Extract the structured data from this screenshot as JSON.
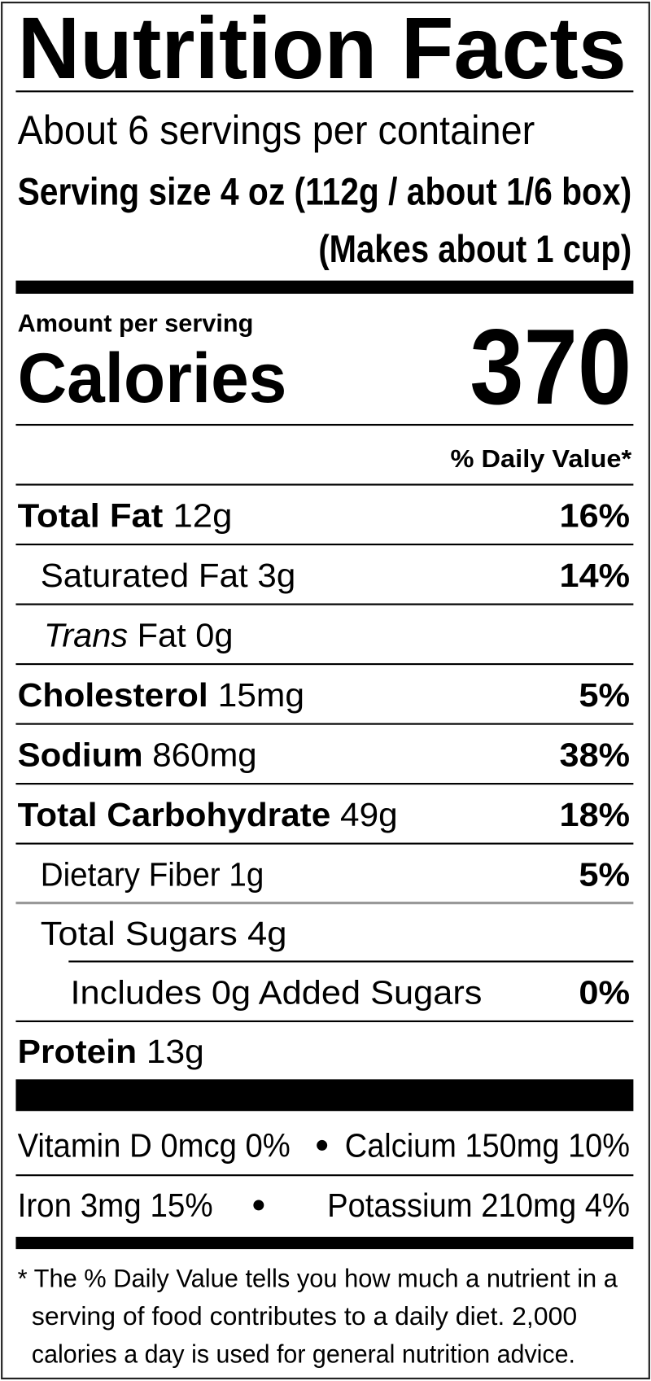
{
  "label": {
    "title": "Nutrition Facts",
    "servings_per_container": "About 6 servings per container",
    "serving_size": {
      "label": "Serving size",
      "value": "4 oz (112g / about 1/6 box)",
      "note": "(Makes about 1 cup)"
    },
    "amount_per_serving": "Amount per serving",
    "calories": {
      "label": "Calories",
      "value": "370"
    },
    "daily_value_header": "% Daily Value*",
    "nutrients": [
      {
        "name": "Total Fat",
        "amount": "12g",
        "dv": "16%"
      },
      {
        "name": "Saturated Fat",
        "amount": "3g",
        "dv": "14%"
      },
      {
        "name_italic": "Trans",
        "name": "Fat",
        "amount": "0g"
      },
      {
        "name": "Cholesterol",
        "amount": "15mg",
        "dv": "5%"
      },
      {
        "name": "Sodium",
        "amount": "860mg",
        "dv": "38%"
      },
      {
        "name": "Total Carbohydrate",
        "amount": "49g",
        "dv": "18%"
      },
      {
        "name": "Dietary Fiber",
        "amount": "1g",
        "dv": "5%"
      },
      {
        "name": "Total Sugars",
        "amount": "4g"
      },
      {
        "name": "Includes 0g Added Sugars",
        "dv": "0%"
      },
      {
        "name": "Protein",
        "amount": "13g"
      }
    ],
    "micronutrients": [
      "Vitamin D 0mcg 0%",
      "Calcium 150mg 10%",
      "Iron 3mg 15%",
      "Potassium 210mg 4%"
    ],
    "footnote": [
      "* The % Daily Value tells you how much a nutrient in a",
      "serving of food contributes to a daily diet. 2,000",
      "calories a day is used for general nutrition advice."
    ]
  }
}
